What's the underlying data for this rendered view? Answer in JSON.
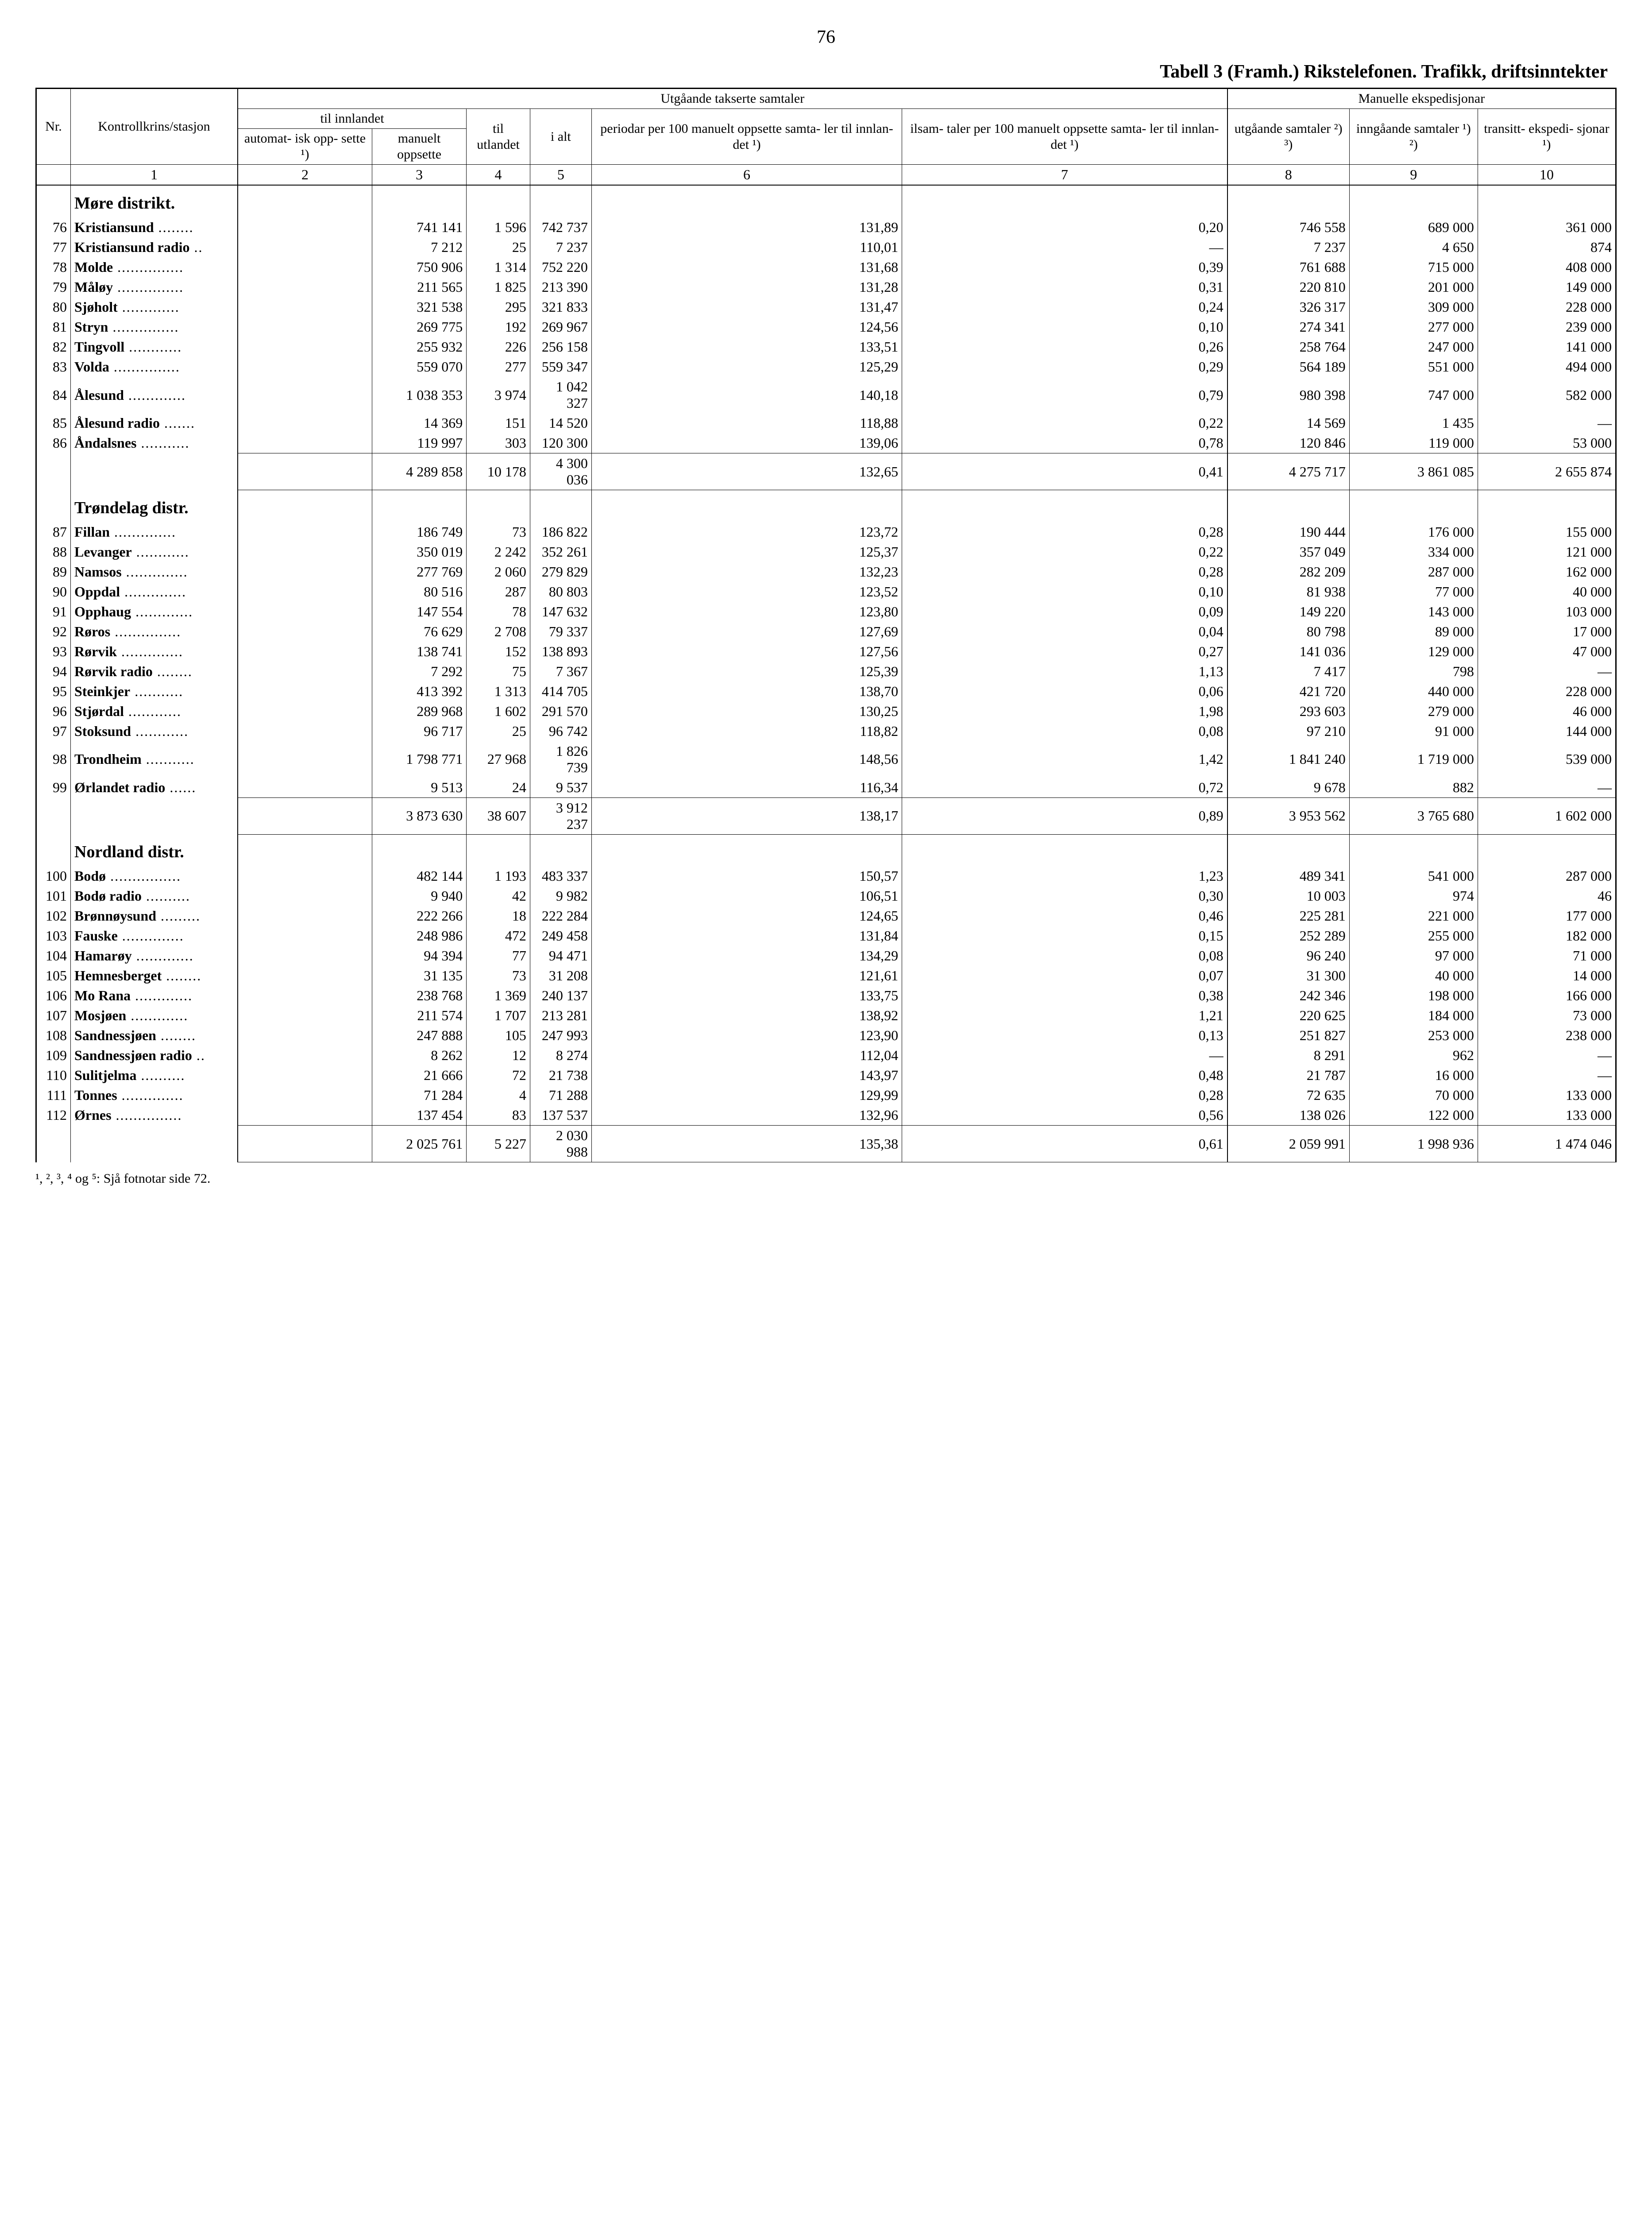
{
  "pageNumber": "76",
  "title": "Tabell 3 (Framh.) Rikstelefonen. Trafikk, driftsinntekter",
  "headers": {
    "utgaande": "Utgåande takserte samtaler",
    "manuelle": "Manuelle ekspedisjonar",
    "tilInnlandet": "til innlandet",
    "nr": "Nr.",
    "kontroll": "Kontrollkrins/stasjon",
    "automatisk": "automat-\nisk opp-\nsette ¹)",
    "manuelt": "manuelt\noppsette",
    "tilUtlandet": "til\nutlandet",
    "iAlt": "i alt",
    "periodar": "periodar\nper 100\nmanuelt\noppsette\nsamta-\nler til\ninnlan-\ndet ¹)",
    "ilsamtaler": "ilsam-\ntaler per\n100\nmanuelt\noppsette\nsamta-\nler til\ninnlan-\ndet ¹)",
    "utgSamtaler": "utgåande\nsamtaler\n²) ³)",
    "inngSamtaler": "inngåande\nsamtaler\n¹) ²)",
    "transitt": "transitt-\nekspedi-\nsjonar\n¹)"
  },
  "colNums": [
    "1",
    "2",
    "3",
    "4",
    "5",
    "6",
    "7",
    "8",
    "9",
    "10"
  ],
  "districts": [
    {
      "name": "Møre distrikt.",
      "rows": [
        {
          "nr": "76",
          "name": "Kristiansund",
          "c2": "",
          "c3": "741 141",
          "c4": "1 596",
          "c5": "742 737",
          "c6": "131,89",
          "c7": "0,20",
          "c8": "746 558",
          "c9": "689 000",
          "c10": "361 000"
        },
        {
          "nr": "77",
          "name": "Kristiansund radio",
          "c2": "",
          "c3": "7 212",
          "c4": "25",
          "c5": "7 237",
          "c6": "110,01",
          "c7": "—",
          "c8": "7 237",
          "c9": "4 650",
          "c10": "874"
        },
        {
          "nr": "78",
          "name": "Molde",
          "c2": "",
          "c3": "750 906",
          "c4": "1 314",
          "c5": "752 220",
          "c6": "131,68",
          "c7": "0,39",
          "c8": "761 688",
          "c9": "715 000",
          "c10": "408 000"
        },
        {
          "nr": "79",
          "name": "Måløy",
          "c2": "",
          "c3": "211 565",
          "c4": "1 825",
          "c5": "213 390",
          "c6": "131,28",
          "c7": "0,31",
          "c8": "220 810",
          "c9": "201 000",
          "c10": "149 000"
        },
        {
          "nr": "80",
          "name": "Sjøholt",
          "c2": "",
          "c3": "321 538",
          "c4": "295",
          "c5": "321 833",
          "c6": "131,47",
          "c7": "0,24",
          "c8": "326 317",
          "c9": "309 000",
          "c10": "228 000"
        },
        {
          "nr": "81",
          "name": "Stryn",
          "c2": "",
          "c3": "269 775",
          "c4": "192",
          "c5": "269 967",
          "c6": "124,56",
          "c7": "0,10",
          "c8": "274 341",
          "c9": "277 000",
          "c10": "239 000"
        },
        {
          "nr": "82",
          "name": "Tingvoll",
          "c2": "",
          "c3": "255 932",
          "c4": "226",
          "c5": "256 158",
          "c6": "133,51",
          "c7": "0,26",
          "c8": "258 764",
          "c9": "247 000",
          "c10": "141 000"
        },
        {
          "nr": "83",
          "name": "Volda",
          "c2": "",
          "c3": "559 070",
          "c4": "277",
          "c5": "559 347",
          "c6": "125,29",
          "c7": "0,29",
          "c8": "564 189",
          "c9": "551 000",
          "c10": "494 000"
        },
        {
          "nr": "84",
          "name": "Ålesund",
          "c2": "",
          "c3": "1 038 353",
          "c4": "3 974",
          "c5": "1 042 327",
          "c6": "140,18",
          "c7": "0,79",
          "c8": "980 398",
          "c9": "747 000",
          "c10": "582 000"
        },
        {
          "nr": "85",
          "name": "Ålesund radio",
          "c2": "",
          "c3": "14 369",
          "c4": "151",
          "c5": "14 520",
          "c6": "118,88",
          "c7": "0,22",
          "c8": "14 569",
          "c9": "1 435",
          "c10": "—"
        },
        {
          "nr": "86",
          "name": "Åndalsnes",
          "c2": "",
          "c3": "119 997",
          "c4": "303",
          "c5": "120 300",
          "c6": "139,06",
          "c7": "0,78",
          "c8": "120 846",
          "c9": "119 000",
          "c10": "53 000"
        }
      ],
      "subtotal": {
        "c2": "",
        "c3": "4 289 858",
        "c4": "10 178",
        "c5": "4 300 036",
        "c6": "132,65",
        "c7": "0,41",
        "c8": "4 275 717",
        "c9": "3 861 085",
        "c10": "2 655 874"
      }
    },
    {
      "name": "Trøndelag distr.",
      "rows": [
        {
          "nr": "87",
          "name": "Fillan",
          "c2": "",
          "c3": "186 749",
          "c4": "73",
          "c5": "186 822",
          "c6": "123,72",
          "c7": "0,28",
          "c8": "190 444",
          "c9": "176 000",
          "c10": "155 000"
        },
        {
          "nr": "88",
          "name": "Levanger",
          "c2": "",
          "c3": "350 019",
          "c4": "2 242",
          "c5": "352 261",
          "c6": "125,37",
          "c7": "0,22",
          "c8": "357 049",
          "c9": "334 000",
          "c10": "121 000"
        },
        {
          "nr": "89",
          "name": "Namsos",
          "c2": "",
          "c3": "277 769",
          "c4": "2 060",
          "c5": "279 829",
          "c6": "132,23",
          "c7": "0,28",
          "c8": "282 209",
          "c9": "287 000",
          "c10": "162 000"
        },
        {
          "nr": "90",
          "name": "Oppdal",
          "c2": "",
          "c3": "80 516",
          "c4": "287",
          "c5": "80 803",
          "c6": "123,52",
          "c7": "0,10",
          "c8": "81 938",
          "c9": "77 000",
          "c10": "40 000"
        },
        {
          "nr": "91",
          "name": "Opphaug",
          "c2": "",
          "c3": "147 554",
          "c4": "78",
          "c5": "147 632",
          "c6": "123,80",
          "c7": "0,09",
          "c8": "149 220",
          "c9": "143 000",
          "c10": "103 000"
        },
        {
          "nr": "92",
          "name": "Røros",
          "c2": "",
          "c3": "76 629",
          "c4": "2 708",
          "c5": "79 337",
          "c6": "127,69",
          "c7": "0,04",
          "c8": "80 798",
          "c9": "89 000",
          "c10": "17 000"
        },
        {
          "nr": "93",
          "name": "Rørvik",
          "c2": "",
          "c3": "138 741",
          "c4": "152",
          "c5": "138 893",
          "c6": "127,56",
          "c7": "0,27",
          "c8": "141 036",
          "c9": "129 000",
          "c10": "47 000"
        },
        {
          "nr": "94",
          "name": "Rørvik radio",
          "c2": "",
          "c3": "7 292",
          "c4": "75",
          "c5": "7 367",
          "c6": "125,39",
          "c7": "1,13",
          "c8": "7 417",
          "c9": "798",
          "c10": "—"
        },
        {
          "nr": "95",
          "name": "Steinkjer",
          "c2": "",
          "c3": "413 392",
          "c4": "1 313",
          "c5": "414 705",
          "c6": "138,70",
          "c7": "0,06",
          "c8": "421 720",
          "c9": "440 000",
          "c10": "228 000"
        },
        {
          "nr": "96",
          "name": "Stjørdal",
          "c2": "",
          "c3": "289 968",
          "c4": "1 602",
          "c5": "291 570",
          "c6": "130,25",
          "c7": "1,98",
          "c8": "293 603",
          "c9": "279 000",
          "c10": "46 000"
        },
        {
          "nr": "97",
          "name": "Stoksund",
          "c2": "",
          "c3": "96 717",
          "c4": "25",
          "c5": "96 742",
          "c6": "118,82",
          "c7": "0,08",
          "c8": "97 210",
          "c9": "91 000",
          "c10": "144 000"
        },
        {
          "nr": "98",
          "name": "Trondheim",
          "c2": "",
          "c3": "1 798 771",
          "c4": "27 968",
          "c5": "1 826 739",
          "c6": "148,56",
          "c7": "1,42",
          "c8": "1 841 240",
          "c9": "1 719 000",
          "c10": "539 000"
        },
        {
          "nr": "99",
          "name": "Ørlandet radio",
          "c2": "",
          "c3": "9 513",
          "c4": "24",
          "c5": "9 537",
          "c6": "116,34",
          "c7": "0,72",
          "c8": "9 678",
          "c9": "882",
          "c10": "—"
        }
      ],
      "subtotal": {
        "c2": "",
        "c3": "3 873 630",
        "c4": "38 607",
        "c5": "3 912 237",
        "c6": "138,17",
        "c7": "0,89",
        "c8": "3 953 562",
        "c9": "3 765 680",
        "c10": "1 602 000"
      }
    },
    {
      "name": "Nordland distr.",
      "rows": [
        {
          "nr": "100",
          "name": "Bodø",
          "c2": "",
          "c3": "482 144",
          "c4": "1 193",
          "c5": "483 337",
          "c6": "150,57",
          "c7": "1,23",
          "c8": "489 341",
          "c9": "541 000",
          "c10": "287 000"
        },
        {
          "nr": "101",
          "name": "Bodø radio",
          "c2": "",
          "c3": "9 940",
          "c4": "42",
          "c5": "9 982",
          "c6": "106,51",
          "c7": "0,30",
          "c8": "10 003",
          "c9": "974",
          "c10": "46"
        },
        {
          "nr": "102",
          "name": "Brønnøysund",
          "c2": "",
          "c3": "222 266",
          "c4": "18",
          "c5": "222 284",
          "c6": "124,65",
          "c7": "0,46",
          "c8": "225 281",
          "c9": "221 000",
          "c10": "177 000"
        },
        {
          "nr": "103",
          "name": "Fauske",
          "c2": "",
          "c3": "248 986",
          "c4": "472",
          "c5": "249 458",
          "c6": "131,84",
          "c7": "0,15",
          "c8": "252 289",
          "c9": "255 000",
          "c10": "182 000"
        },
        {
          "nr": "104",
          "name": "Hamarøy",
          "c2": "",
          "c3": "94 394",
          "c4": "77",
          "c5": "94 471",
          "c6": "134,29",
          "c7": "0,08",
          "c8": "96 240",
          "c9": "97 000",
          "c10": "71 000"
        },
        {
          "nr": "105",
          "name": "Hemnesberget",
          "c2": "",
          "c3": "31 135",
          "c4": "73",
          "c5": "31 208",
          "c6": "121,61",
          "c7": "0,07",
          "c8": "31 300",
          "c9": "40 000",
          "c10": "14 000"
        },
        {
          "nr": "106",
          "name": "Mo Rana",
          "c2": "",
          "c3": "238 768",
          "c4": "1 369",
          "c5": "240 137",
          "c6": "133,75",
          "c7": "0,38",
          "c8": "242 346",
          "c9": "198 000",
          "c10": "166 000"
        },
        {
          "nr": "107",
          "name": "Mosjøen",
          "c2": "",
          "c3": "211 574",
          "c4": "1 707",
          "c5": "213 281",
          "c6": "138,92",
          "c7": "1,21",
          "c8": "220 625",
          "c9": "184 000",
          "c10": "73 000"
        },
        {
          "nr": "108",
          "name": "Sandnessjøen",
          "c2": "",
          "c3": "247 888",
          "c4": "105",
          "c5": "247 993",
          "c6": "123,90",
          "c7": "0,13",
          "c8": "251 827",
          "c9": "253 000",
          "c10": "238 000"
        },
        {
          "nr": "109",
          "name": "Sandnessjøen radio",
          "c2": "",
          "c3": "8 262",
          "c4": "12",
          "c5": "8 274",
          "c6": "112,04",
          "c7": "—",
          "c8": "8 291",
          "c9": "962",
          "c10": "—"
        },
        {
          "nr": "110",
          "name": "Sulitjelma",
          "c2": "",
          "c3": "21 666",
          "c4": "72",
          "c5": "21 738",
          "c6": "143,97",
          "c7": "0,48",
          "c8": "21 787",
          "c9": "16 000",
          "c10": "—"
        },
        {
          "nr": "111",
          "name": "Tonnes",
          "c2": "",
          "c3": "71 284",
          "c4": "4",
          "c5": "71 288",
          "c6": "129,99",
          "c7": "0,28",
          "c8": "72 635",
          "c9": "70 000",
          "c10": "133 000"
        },
        {
          "nr": "112",
          "name": "Ørnes",
          "c2": "",
          "c3": "137 454",
          "c4": "83",
          "c5": "137 537",
          "c6": "132,96",
          "c7": "0,56",
          "c8": "138 026",
          "c9": "122 000",
          "c10": "133 000"
        }
      ],
      "subtotal": {
        "c2": "",
        "c3": "2 025 761",
        "c4": "5 227",
        "c5": "2 030 988",
        "c6": "135,38",
        "c7": "0,61",
        "c8": "2 059 991",
        "c9": "1 998 936",
        "c10": "1 474 046"
      }
    }
  ],
  "footnote": "¹, ², ³, ⁴ og ⁵: Sjå fotnotar side 72."
}
